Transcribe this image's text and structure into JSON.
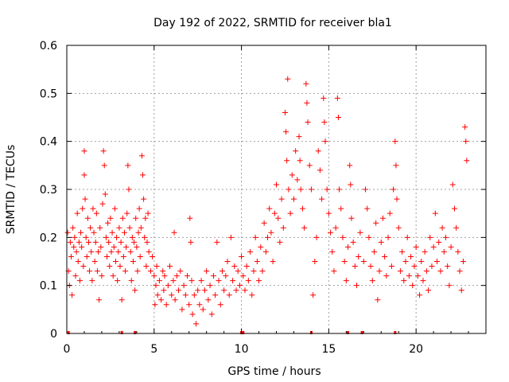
{
  "chart_data": {
    "type": "scatter",
    "title": "Day 192 of 2022, SRMTID for receiver bla1",
    "xlabel": "GPS time / hours",
    "ylabel": "SRMTID / TECUs",
    "xlim": [
      0,
      24
    ],
    "ylim": [
      0,
      0.6
    ],
    "xticks": [
      0,
      5,
      10,
      15,
      20
    ],
    "xtick_labels": [
      "0",
      "5",
      "10",
      "15",
      "20"
    ],
    "yticks": [
      0,
      0.1,
      0.2,
      0.3,
      0.4,
      0.5,
      0.6
    ],
    "ytick_labels": [
      "0",
      "0.1",
      "0.2",
      "0.3",
      "0.4",
      "0.5",
      "0.6"
    ],
    "grid": true,
    "marker": "+",
    "color": "#ff0000",
    "series": [
      {
        "name": "SRMTID",
        "points": [
          [
            0.05,
            0.21
          ],
          [
            0.1,
            0.13
          ],
          [
            0.15,
            0.1
          ],
          [
            0.2,
            0.19
          ],
          [
            0.25,
            0.16
          ],
          [
            0.3,
            0.08
          ],
          [
            0.35,
            0.22
          ],
          [
            0.4,
            0.18
          ],
          [
            0.45,
            0.2
          ],
          [
            0.5,
            0.12
          ],
          [
            0.55,
            0.17
          ],
          [
            0.6,
            0.25
          ],
          [
            0.65,
            0.15
          ],
          [
            0.7,
            0.19
          ],
          [
            0.75,
            0.11
          ],
          [
            0.8,
            0.21
          ],
          [
            0.85,
            0.18
          ],
          [
            0.9,
            0.26
          ],
          [
            0.95,
            0.14
          ],
          [
            1.0,
            0.38
          ],
          [
            1.0,
            0.33
          ],
          [
            1.05,
            0.28
          ],
          [
            1.1,
            0.2
          ],
          [
            1.15,
            0.16
          ],
          [
            1.2,
            0.24
          ],
          [
            1.25,
            0.19
          ],
          [
            1.3,
            0.13
          ],
          [
            1.35,
            0.22
          ],
          [
            1.4,
            0.17
          ],
          [
            1.45,
            0.11
          ],
          [
            1.5,
            0.26
          ],
          [
            1.55,
            0.21
          ],
          [
            1.6,
            0.15
          ],
          [
            1.65,
            0.19
          ],
          [
            1.7,
            0.25
          ],
          [
            1.75,
            0.13
          ],
          [
            1.8,
            0.17
          ],
          [
            1.85,
            0.07
          ],
          [
            1.9,
            0.22
          ],
          [
            1.95,
            0.18
          ],
          [
            2.0,
            0.12
          ],
          [
            2.05,
            0.27
          ],
          [
            2.1,
            0.38
          ],
          [
            2.15,
            0.35
          ],
          [
            2.2,
            0.29
          ],
          [
            2.25,
            0.2
          ],
          [
            2.3,
            0.16
          ],
          [
            2.35,
            0.23
          ],
          [
            2.4,
            0.19
          ],
          [
            2.45,
            0.14
          ],
          [
            2.5,
            0.24
          ],
          [
            2.55,
            0.17
          ],
          [
            2.6,
            0.21
          ],
          [
            2.65,
            0.12
          ],
          [
            2.7,
            0.18
          ],
          [
            2.75,
            0.26
          ],
          [
            2.8,
            0.15
          ],
          [
            2.85,
            0.2
          ],
          [
            2.9,
            0.11
          ],
          [
            2.95,
            0.17
          ],
          [
            3.0,
            0.22
          ],
          [
            3.05,
            0.14
          ],
          [
            3.1,
            0.19
          ],
          [
            3.15,
            0.07
          ],
          [
            3.2,
            0.24
          ],
          [
            3.25,
            0.16
          ],
          [
            3.3,
            0.21
          ],
          [
            3.35,
            0.13
          ],
          [
            3.4,
            0.18
          ],
          [
            3.45,
            0.25
          ],
          [
            3.5,
            0.35
          ],
          [
            3.55,
            0.3
          ],
          [
            3.6,
            0.22
          ],
          [
            3.65,
            0.17
          ],
          [
            3.7,
            0.11
          ],
          [
            3.75,
            0.2
          ],
          [
            3.8,
            0.15
          ],
          [
            3.85,
            0.19
          ],
          [
            3.9,
            0.09
          ],
          [
            3.95,
            0.24
          ],
          [
            4.0,
            0.18
          ],
          [
            4.05,
            0.13
          ],
          [
            4.1,
            0.21
          ],
          [
            4.15,
            0.26
          ],
          [
            4.2,
            0.16
          ],
          [
            4.25,
            0.22
          ],
          [
            4.3,
            0.37
          ],
          [
            4.35,
            0.33
          ],
          [
            4.4,
            0.28
          ],
          [
            4.45,
            0.2
          ],
          [
            4.5,
            0.24
          ],
          [
            4.55,
            0.14
          ],
          [
            4.6,
            0.19
          ],
          [
            4.65,
            0.25
          ],
          [
            4.7,
            0.17
          ],
          [
            4.8,
            0.13
          ],
          [
            4.9,
            0.16
          ],
          [
            5.0,
            0.12
          ],
          [
            5.05,
            0.06
          ],
          [
            5.1,
            0.1
          ],
          [
            5.15,
            0.14
          ],
          [
            5.2,
            0.08
          ],
          [
            5.3,
            0.11
          ],
          [
            5.4,
            0.07
          ],
          [
            5.5,
            0.13
          ],
          [
            5.55,
            0.09
          ],
          [
            5.6,
            0.12
          ],
          [
            5.7,
            0.06
          ],
          [
            5.8,
            0.1
          ],
          [
            5.9,
            0.14
          ],
          [
            6.0,
            0.08
          ],
          [
            6.1,
            0.11
          ],
          [
            6.15,
            0.21
          ],
          [
            6.2,
            0.07
          ],
          [
            6.3,
            0.12
          ],
          [
            6.4,
            0.09
          ],
          [
            6.5,
            0.13
          ],
          [
            6.6,
            0.05
          ],
          [
            6.7,
            0.1
          ],
          [
            6.8,
            0.08
          ],
          [
            6.9,
            0.12
          ],
          [
            7.0,
            0.06
          ],
          [
            7.05,
            0.24
          ],
          [
            7.1,
            0.19
          ],
          [
            7.15,
            0.11
          ],
          [
            7.2,
            0.04
          ],
          [
            7.3,
            0.08
          ],
          [
            7.4,
            0.02
          ],
          [
            7.5,
            0.09
          ],
          [
            7.6,
            0.06
          ],
          [
            7.7,
            0.11
          ],
          [
            7.8,
            0.05
          ],
          [
            7.9,
            0.09
          ],
          [
            8.0,
            0.13
          ],
          [
            8.1,
            0.07
          ],
          [
            8.2,
            0.1
          ],
          [
            8.3,
            0.04
          ],
          [
            8.4,
            0.12
          ],
          [
            8.5,
            0.08
          ],
          [
            8.6,
            0.19
          ],
          [
            8.7,
            0.11
          ],
          [
            8.8,
            0.06
          ],
          [
            8.9,
            0.13
          ],
          [
            9.0,
            0.09
          ],
          [
            9.1,
            0.12
          ],
          [
            9.2,
            0.15
          ],
          [
            9.3,
            0.08
          ],
          [
            9.4,
            0.2
          ],
          [
            9.5,
            0.11
          ],
          [
            9.6,
            0.14
          ],
          [
            9.7,
            0.09
          ],
          [
            9.8,
            0.13
          ],
          [
            9.9,
            0.1
          ],
          [
            10.0,
            0.16
          ],
          [
            10.1,
            0.12
          ],
          [
            10.2,
            0.09
          ],
          [
            10.3,
            0.14
          ],
          [
            10.4,
            0.11
          ],
          [
            10.5,
            0.17
          ],
          [
            10.6,
            0.08
          ],
          [
            10.7,
            0.13
          ],
          [
            10.8,
            0.2
          ],
          [
            10.9,
            0.15
          ],
          [
            11.0,
            0.11
          ],
          [
            11.1,
            0.18
          ],
          [
            11.2,
            0.13
          ],
          [
            11.3,
            0.23
          ],
          [
            11.4,
            0.17
          ],
          [
            11.5,
            0.2
          ],
          [
            11.6,
            0.26
          ],
          [
            11.7,
            0.21
          ],
          [
            11.8,
            0.15
          ],
          [
            11.9,
            0.25
          ],
          [
            12.0,
            0.31
          ],
          [
            12.1,
            0.24
          ],
          [
            12.2,
            0.19
          ],
          [
            12.3,
            0.28
          ],
          [
            12.4,
            0.22
          ],
          [
            12.5,
            0.46
          ],
          [
            12.55,
            0.42
          ],
          [
            12.6,
            0.36
          ],
          [
            12.65,
            0.53
          ],
          [
            12.7,
            0.3
          ],
          [
            12.8,
            0.25
          ],
          [
            12.9,
            0.33
          ],
          [
            13.0,
            0.28
          ],
          [
            13.1,
            0.38
          ],
          [
            13.2,
            0.32
          ],
          [
            13.3,
            0.41
          ],
          [
            13.35,
            0.36
          ],
          [
            13.4,
            0.3
          ],
          [
            13.5,
            0.26
          ],
          [
            13.6,
            0.22
          ],
          [
            13.7,
            0.52
          ],
          [
            13.75,
            0.48
          ],
          [
            13.8,
            0.44
          ],
          [
            13.9,
            0.35
          ],
          [
            14.0,
            0.3
          ],
          [
            14.1,
            0.08
          ],
          [
            14.2,
            0.15
          ],
          [
            14.3,
            0.2
          ],
          [
            14.4,
            0.38
          ],
          [
            14.5,
            0.34
          ],
          [
            14.6,
            0.28
          ],
          [
            14.7,
            0.49
          ],
          [
            14.75,
            0.44
          ],
          [
            14.8,
            0.4
          ],
          [
            14.9,
            0.3
          ],
          [
            15.0,
            0.25
          ],
          [
            15.1,
            0.21
          ],
          [
            15.2,
            0.17
          ],
          [
            15.3,
            0.13
          ],
          [
            15.4,
            0.22
          ],
          [
            15.5,
            0.49
          ],
          [
            15.55,
            0.45
          ],
          [
            15.6,
            0.3
          ],
          [
            15.7,
            0.26
          ],
          [
            15.8,
            0.2
          ],
          [
            15.9,
            0.15
          ],
          [
            16.0,
            0.11
          ],
          [
            16.1,
            0.18
          ],
          [
            16.2,
            0.35
          ],
          [
            16.25,
            0.31
          ],
          [
            16.3,
            0.24
          ],
          [
            16.4,
            0.19
          ],
          [
            16.5,
            0.14
          ],
          [
            16.6,
            0.1
          ],
          [
            16.7,
            0.16
          ],
          [
            16.8,
            0.21
          ],
          [
            17.0,
            0.15
          ],
          [
            17.1,
            0.3
          ],
          [
            17.2,
            0.26
          ],
          [
            17.3,
            0.2
          ],
          [
            17.4,
            0.14
          ],
          [
            17.5,
            0.11
          ],
          [
            17.6,
            0.17
          ],
          [
            17.7,
            0.23
          ],
          [
            17.8,
            0.07
          ],
          [
            17.9,
            0.13
          ],
          [
            18.0,
            0.19
          ],
          [
            18.1,
            0.24
          ],
          [
            18.2,
            0.16
          ],
          [
            18.3,
            0.12
          ],
          [
            18.4,
            0.2
          ],
          [
            18.5,
            0.25
          ],
          [
            18.6,
            0.14
          ],
          [
            18.7,
            0.3
          ],
          [
            18.8,
            0.4
          ],
          [
            18.85,
            0.35
          ],
          [
            18.9,
            0.28
          ],
          [
            19.0,
            0.22
          ],
          [
            19.1,
            0.13
          ],
          [
            19.2,
            0.17
          ],
          [
            19.3,
            0.11
          ],
          [
            19.4,
            0.15
          ],
          [
            19.5,
            0.2
          ],
          [
            19.6,
            0.12
          ],
          [
            19.7,
            0.16
          ],
          [
            19.8,
            0.1
          ],
          [
            19.9,
            0.14
          ],
          [
            20.0,
            0.18
          ],
          [
            20.1,
            0.12
          ],
          [
            20.2,
            0.08
          ],
          [
            20.3,
            0.15
          ],
          [
            20.4,
            0.11
          ],
          [
            20.5,
            0.17
          ],
          [
            20.6,
            0.13
          ],
          [
            20.7,
            0.09
          ],
          [
            20.8,
            0.2
          ],
          [
            20.9,
            0.14
          ],
          [
            21.0,
            0.18
          ],
          [
            21.1,
            0.25
          ],
          [
            21.2,
            0.15
          ],
          [
            21.3,
            0.19
          ],
          [
            21.4,
            0.13
          ],
          [
            21.5,
            0.22
          ],
          [
            21.6,
            0.17
          ],
          [
            21.7,
            0.2
          ],
          [
            21.8,
            0.14
          ],
          [
            21.9,
            0.1
          ],
          [
            22.0,
            0.18
          ],
          [
            22.1,
            0.31
          ],
          [
            22.2,
            0.26
          ],
          [
            22.3,
            0.22
          ],
          [
            22.4,
            0.17
          ],
          [
            22.5,
            0.13
          ],
          [
            22.6,
            0.09
          ],
          [
            22.7,
            0.15
          ],
          [
            22.8,
            0.43
          ],
          [
            22.85,
            0.4
          ],
          [
            22.9,
            0.36
          ]
        ]
      }
    ],
    "gap_markers_x": [
      0.1,
      3.15,
      3.9,
      10.0,
      10.1,
      14.0,
      16.1,
      16.9,
      18.8
    ]
  }
}
